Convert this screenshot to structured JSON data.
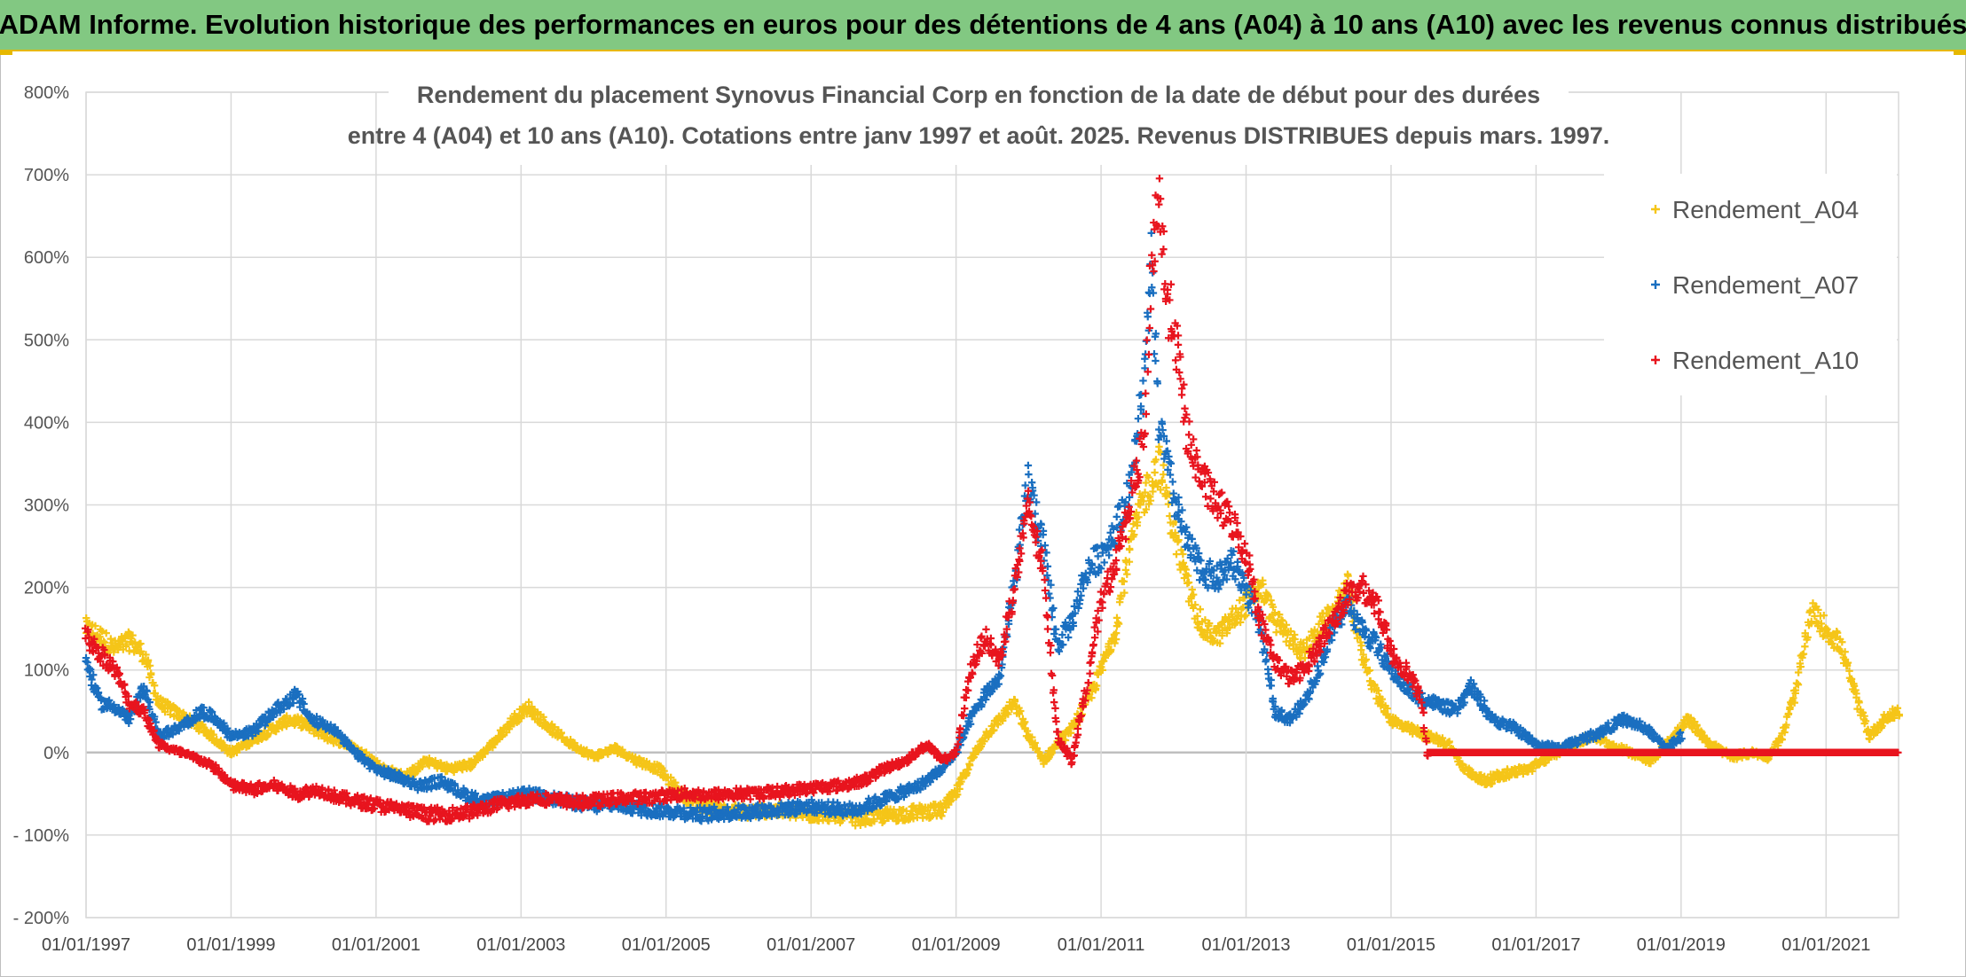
{
  "banner": {
    "title": "ADAM Informe. Evolution historique des performances en euros pour des détentions de 4 ans (A04) à 10 ans (A10) avec les revenus connus distribués"
  },
  "chart_data": {
    "type": "scatter",
    "title_line1": "Rendement du placement Synovus Financial Corp en fonction de la date de début pour des durées",
    "title_line2": "entre 4 (A04) et 10 ans (A10). Cotations entre janv 1997 et août. 2025. Revenus DISTRIBUES depuis mars. 1997.",
    "xlabel": "",
    "ylabel": "",
    "x_range": [
      1997.0,
      2022.0
    ],
    "ylim": [
      -200,
      800
    ],
    "y_ticks": [
      {
        "v": 800,
        "label": "800%"
      },
      {
        "v": 700,
        "label": "700%"
      },
      {
        "v": 600,
        "label": "600%"
      },
      {
        "v": 500,
        "label": "500%"
      },
      {
        "v": 400,
        "label": "400%"
      },
      {
        "v": 300,
        "label": "300%"
      },
      {
        "v": 200,
        "label": "200%"
      },
      {
        "v": 100,
        "label": "100%"
      },
      {
        "v": 0,
        "label": "0%"
      },
      {
        "v": -100,
        "label": "- 100%"
      },
      {
        "v": -200,
        "label": "- 200%"
      }
    ],
    "x_ticks": [
      {
        "v": 1997,
        "label": "01/01/1997"
      },
      {
        "v": 1999,
        "label": "01/01/1999"
      },
      {
        "v": 2001,
        "label": "01/01/2001"
      },
      {
        "v": 2003,
        "label": "01/01/2003"
      },
      {
        "v": 2005,
        "label": "01/01/2005"
      },
      {
        "v": 2007,
        "label": "01/01/2007"
      },
      {
        "v": 2009,
        "label": "01/01/2009"
      },
      {
        "v": 2011,
        "label": "01/01/2011"
      },
      {
        "v": 2013,
        "label": "01/01/2013"
      },
      {
        "v": 2015,
        "label": "01/01/2015"
      },
      {
        "v": 2017,
        "label": "01/01/2017"
      },
      {
        "v": 2019,
        "label": "01/01/2019"
      },
      {
        "v": 2021,
        "label": "01/01/2021"
      }
    ],
    "grid": true,
    "legend_position": "top-right",
    "series": [
      {
        "name": "Rendement_A04",
        "color": "#f5c518",
        "points": [
          [
            1997.0,
            150
          ],
          [
            1997.2,
            140
          ],
          [
            1997.4,
            125
          ],
          [
            1997.6,
            135
          ],
          [
            1997.8,
            120
          ],
          [
            1998.0,
            60
          ],
          [
            1998.3,
            45
          ],
          [
            1998.6,
            30
          ],
          [
            1998.8,
            15
          ],
          [
            1999.0,
            0
          ],
          [
            1999.2,
            10
          ],
          [
            1999.5,
            25
          ],
          [
            1999.8,
            40
          ],
          [
            2000.0,
            35
          ],
          [
            2000.3,
            20
          ],
          [
            2000.6,
            10
          ],
          [
            2000.9,
            -5
          ],
          [
            2001.1,
            -20
          ],
          [
            2001.4,
            -30
          ],
          [
            2001.7,
            -10
          ],
          [
            2002.0,
            -20
          ],
          [
            2002.3,
            -15
          ],
          [
            2002.6,
            10
          ],
          [
            2002.9,
            40
          ],
          [
            2003.1,
            55
          ],
          [
            2003.4,
            30
          ],
          [
            2003.7,
            10
          ],
          [
            2004.0,
            -5
          ],
          [
            2004.3,
            5
          ],
          [
            2004.6,
            -10
          ],
          [
            2004.9,
            -20
          ],
          [
            2005.2,
            -50
          ],
          [
            2005.5,
            -65
          ],
          [
            2005.8,
            -70
          ],
          [
            2006.1,
            -72
          ],
          [
            2006.4,
            -70
          ],
          [
            2006.7,
            -72
          ],
          [
            2007.0,
            -75
          ],
          [
            2007.3,
            -75
          ],
          [
            2007.6,
            -80
          ],
          [
            2007.9,
            -78
          ],
          [
            2008.2,
            -75
          ],
          [
            2008.5,
            -72
          ],
          [
            2008.8,
            -70
          ],
          [
            2009.0,
            -50
          ],
          [
            2009.2,
            -10
          ],
          [
            2009.4,
            20
          ],
          [
            2009.6,
            40
          ],
          [
            2009.8,
            60
          ],
          [
            2010.0,
            20
          ],
          [
            2010.2,
            -10
          ],
          [
            2010.4,
            10
          ],
          [
            2010.6,
            30
          ],
          [
            2010.8,
            60
          ],
          [
            2011.0,
            100
          ],
          [
            2011.2,
            150
          ],
          [
            2011.4,
            250
          ],
          [
            2011.6,
            310
          ],
          [
            2011.8,
            350
          ],
          [
            2012.0,
            270
          ],
          [
            2012.2,
            200
          ],
          [
            2012.4,
            150
          ],
          [
            2012.6,
            140
          ],
          [
            2012.8,
            160
          ],
          [
            2013.0,
            180
          ],
          [
            2013.2,
            200
          ],
          [
            2013.4,
            160
          ],
          [
            2013.6,
            140
          ],
          [
            2013.8,
            120
          ],
          [
            2014.0,
            150
          ],
          [
            2014.2,
            170
          ],
          [
            2014.4,
            200
          ],
          [
            2014.6,
            120
          ],
          [
            2014.8,
            70
          ],
          [
            2015.0,
            40
          ],
          [
            2015.2,
            30
          ],
          [
            2015.5,
            20
          ],
          [
            2015.8,
            10
          ],
          [
            2016.0,
            -20
          ],
          [
            2016.3,
            -35
          ],
          [
            2016.6,
            -25
          ],
          [
            2016.9,
            -20
          ],
          [
            2017.2,
            -5
          ],
          [
            2017.5,
            10
          ],
          [
            2017.8,
            20
          ],
          [
            2018.0,
            10
          ],
          [
            2018.3,
            0
          ],
          [
            2018.6,
            -10
          ],
          [
            2018.9,
            20
          ],
          [
            2019.1,
            40
          ],
          [
            2019.4,
            10
          ],
          [
            2019.7,
            -5
          ],
          [
            2020.0,
            0
          ],
          [
            2020.2,
            -5
          ],
          [
            2020.4,
            20
          ],
          [
            2020.6,
            80
          ],
          [
            2020.8,
            170
          ],
          [
            2021.0,
            150
          ],
          [
            2021.2,
            130
          ],
          [
            2021.4,
            70
          ],
          [
            2021.6,
            20
          ],
          [
            2021.8,
            40
          ],
          [
            2022.0,
            50
          ]
        ]
      },
      {
        "name": "Rendement_A07",
        "color": "#1a6fc0",
        "points": [
          [
            1997.0,
            110
          ],
          [
            1997.2,
            60
          ],
          [
            1997.4,
            55
          ],
          [
            1997.6,
            40
          ],
          [
            1997.8,
            80
          ],
          [
            1998.0,
            20
          ],
          [
            1998.3,
            30
          ],
          [
            1998.6,
            50
          ],
          [
            1998.8,
            40
          ],
          [
            1999.0,
            20
          ],
          [
            1999.3,
            25
          ],
          [
            1999.6,
            50
          ],
          [
            1999.9,
            70
          ],
          [
            2000.1,
            40
          ],
          [
            2000.4,
            30
          ],
          [
            2000.7,
            0
          ],
          [
            2001.0,
            -20
          ],
          [
            2001.3,
            -30
          ],
          [
            2001.6,
            -40
          ],
          [
            2001.9,
            -35
          ],
          [
            2002.2,
            -50
          ],
          [
            2002.5,
            -60
          ],
          [
            2002.8,
            -55
          ],
          [
            2003.1,
            -50
          ],
          [
            2003.4,
            -55
          ],
          [
            2003.7,
            -60
          ],
          [
            2004.0,
            -65
          ],
          [
            2004.3,
            -62
          ],
          [
            2004.6,
            -68
          ],
          [
            2004.9,
            -70
          ],
          [
            2005.2,
            -72
          ],
          [
            2005.5,
            -75
          ],
          [
            2005.8,
            -73
          ],
          [
            2006.1,
            -72
          ],
          [
            2006.4,
            -70
          ],
          [
            2006.7,
            -68
          ],
          [
            2007.0,
            -65
          ],
          [
            2007.3,
            -68
          ],
          [
            2007.6,
            -70
          ],
          [
            2007.9,
            -60
          ],
          [
            2008.2,
            -50
          ],
          [
            2008.5,
            -40
          ],
          [
            2008.8,
            -20
          ],
          [
            2009.0,
            0
          ],
          [
            2009.2,
            40
          ],
          [
            2009.4,
            70
          ],
          [
            2009.6,
            90
          ],
          [
            2009.8,
            200
          ],
          [
            2010.0,
            330
          ],
          [
            2010.2,
            250
          ],
          [
            2010.4,
            130
          ],
          [
            2010.6,
            160
          ],
          [
            2010.8,
            220
          ],
          [
            2011.0,
            240
          ],
          [
            2011.2,
            270
          ],
          [
            2011.4,
            320
          ],
          [
            2011.6,
            450
          ],
          [
            2011.7,
            590
          ],
          [
            2011.8,
            400
          ],
          [
            2012.0,
            310
          ],
          [
            2012.2,
            250
          ],
          [
            2012.4,
            220
          ],
          [
            2012.6,
            210
          ],
          [
            2012.8,
            230
          ],
          [
            2013.0,
            200
          ],
          [
            2013.2,
            150
          ],
          [
            2013.4,
            50
          ],
          [
            2013.6,
            40
          ],
          [
            2013.8,
            60
          ],
          [
            2014.0,
            100
          ],
          [
            2014.2,
            150
          ],
          [
            2014.4,
            180
          ],
          [
            2014.6,
            150
          ],
          [
            2014.8,
            130
          ],
          [
            2015.0,
            100
          ],
          [
            2015.3,
            70
          ],
          [
            2015.6,
            60
          ],
          [
            2015.9,
            50
          ],
          [
            2016.1,
            80
          ],
          [
            2016.4,
            40
          ],
          [
            2016.7,
            30
          ],
          [
            2017.0,
            10
          ],
          [
            2017.3,
            5
          ],
          [
            2017.6,
            15
          ],
          [
            2017.9,
            25
          ],
          [
            2018.2,
            40
          ],
          [
            2018.5,
            30
          ],
          [
            2018.8,
            5
          ],
          [
            2019.0,
            20
          ]
        ]
      },
      {
        "name": "Rendement_A10",
        "color": "#e8141e",
        "points": [
          [
            1997.0,
            140
          ],
          [
            1997.2,
            120
          ],
          [
            1997.4,
            100
          ],
          [
            1997.6,
            60
          ],
          [
            1997.8,
            50
          ],
          [
            1998.0,
            10
          ],
          [
            1998.3,
            0
          ],
          [
            1998.6,
            -10
          ],
          [
            1998.8,
            -20
          ],
          [
            1999.0,
            -40
          ],
          [
            1999.3,
            -45
          ],
          [
            1999.6,
            -40
          ],
          [
            1999.9,
            -50
          ],
          [
            2000.2,
            -45
          ],
          [
            2000.5,
            -55
          ],
          [
            2000.8,
            -60
          ],
          [
            2001.1,
            -65
          ],
          [
            2001.4,
            -70
          ],
          [
            2001.7,
            -75
          ],
          [
            2002.0,
            -75
          ],
          [
            2002.3,
            -72
          ],
          [
            2002.6,
            -65
          ],
          [
            2002.9,
            -60
          ],
          [
            2003.2,
            -55
          ],
          [
            2003.5,
            -58
          ],
          [
            2003.8,
            -60
          ],
          [
            2004.1,
            -58
          ],
          [
            2004.4,
            -55
          ],
          [
            2004.7,
            -55
          ],
          [
            2005.0,
            -52
          ],
          [
            2005.3,
            -50
          ],
          [
            2005.6,
            -52
          ],
          [
            2005.9,
            -50
          ],
          [
            2006.2,
            -50
          ],
          [
            2006.5,
            -48
          ],
          [
            2006.8,
            -45
          ],
          [
            2007.1,
            -42
          ],
          [
            2007.4,
            -40
          ],
          [
            2007.7,
            -35
          ],
          [
            2008.0,
            -20
          ],
          [
            2008.3,
            -10
          ],
          [
            2008.6,
            10
          ],
          [
            2008.8,
            -10
          ],
          [
            2009.0,
            0
          ],
          [
            2009.2,
            100
          ],
          [
            2009.4,
            140
          ],
          [
            2009.6,
            110
          ],
          [
            2009.8,
            200
          ],
          [
            2010.0,
            300
          ],
          [
            2010.2,
            220
          ],
          [
            2010.4,
            20
          ],
          [
            2010.6,
            -10
          ],
          [
            2010.8,
            80
          ],
          [
            2011.0,
            180
          ],
          [
            2011.2,
            230
          ],
          [
            2011.4,
            300
          ],
          [
            2011.6,
            380
          ],
          [
            2011.7,
            600
          ],
          [
            2011.8,
            680
          ],
          [
            2011.9,
            550
          ],
          [
            2012.0,
            520
          ],
          [
            2012.2,
            380
          ],
          [
            2012.4,
            330
          ],
          [
            2012.6,
            300
          ],
          [
            2012.8,
            280
          ],
          [
            2013.0,
            240
          ],
          [
            2013.2,
            160
          ],
          [
            2013.4,
            110
          ],
          [
            2013.6,
            90
          ],
          [
            2013.8,
            100
          ],
          [
            2014.0,
            130
          ],
          [
            2014.2,
            160
          ],
          [
            2014.4,
            190
          ],
          [
            2014.6,
            200
          ],
          [
            2014.8,
            180
          ],
          [
            2015.0,
            120
          ],
          [
            2015.2,
            100
          ],
          [
            2015.4,
            70
          ],
          [
            2015.5,
            0
          ]
        ]
      }
    ],
    "a10_zero_band": {
      "x_start": 2015.5,
      "x_end": 2022.0,
      "value": 0
    }
  }
}
